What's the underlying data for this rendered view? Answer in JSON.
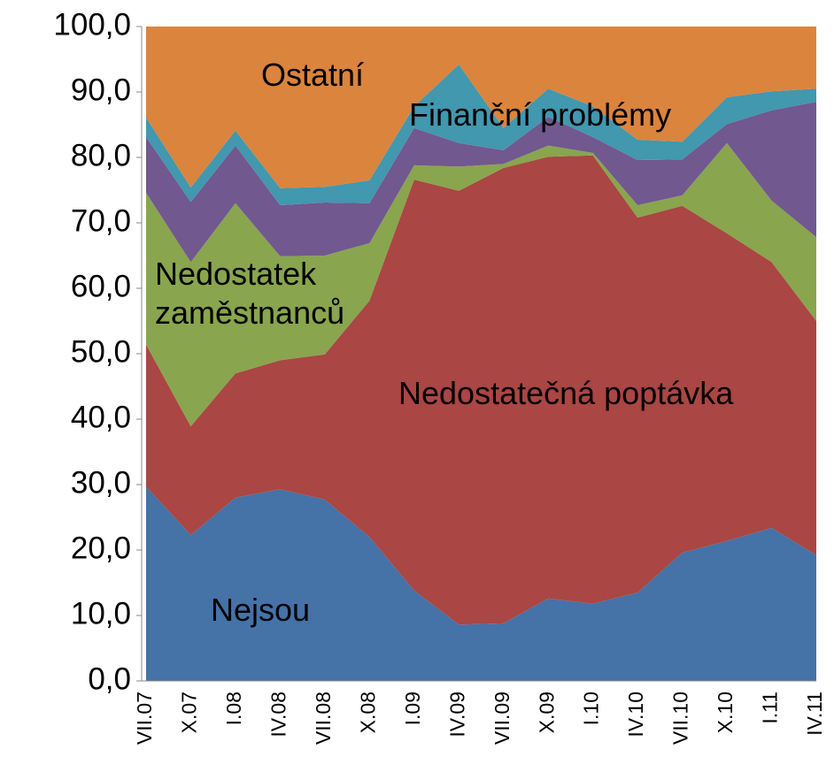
{
  "chart_data": {
    "type": "stacked_area",
    "categories": [
      "VII.07",
      "X.07",
      "I.08",
      "IV.08",
      "VII.08",
      "X.08",
      "I.09",
      "IV.09",
      "VII.09",
      "X.09",
      "I.10",
      "IV.10",
      "VII.10",
      "X.10",
      "I.11",
      "IV.11"
    ],
    "series": [
      {
        "name": "Nejsou",
        "color": "#4572a7",
        "values": [
          29.7,
          22.3,
          28,
          29.3,
          27.7,
          22,
          13.8,
          8.6,
          8.8,
          12.6,
          11.8,
          13.5,
          19.6,
          21.4,
          23.4,
          19.2
        ]
      },
      {
        "name": "Nedostatečná poptávka",
        "color": "#aa4643",
        "values": [
          21.7,
          16.6,
          19,
          19.7,
          22.2,
          36.1,
          62.8,
          66.3,
          69.6,
          67.5,
          68.5,
          57.3,
          53,
          47,
          40.6,
          35.8
        ]
      },
      {
        "name": "Nedostatek zaměstnanců",
        "color": "#89a54e",
        "values": [
          23.2,
          25.1,
          26,
          15.9,
          15.1,
          8.8,
          2.2,
          3.7,
          0.6,
          1.7,
          0.4,
          1.9,
          1.6,
          13.8,
          9.4,
          12.8
        ]
      },
      {
        "name": "Finanční problémy",
        "color": "#71588f",
        "values": [
          8.5,
          9.2,
          8.8,
          7.8,
          8.1,
          6.1,
          5.7,
          3.6,
          2.1,
          4.4,
          2.4,
          6.9,
          5.5,
          2.9,
          13.8,
          20.7
        ]
      },
      {
        "color": "#4198af",
        "values": [
          3,
          2.2,
          2.3,
          2.6,
          2.4,
          3.5,
          3.3,
          12,
          3.4,
          4.3,
          4.7,
          3.1,
          2.7,
          4.1,
          2.9,
          2
        ]
      },
      {
        "name": "Ostatní",
        "color": "#db843d",
        "values": [
          13.9,
          24.6,
          15.9,
          24.7,
          24.5,
          23.5,
          12.2,
          5.8,
          15.5,
          9.5,
          12.2,
          17.3,
          17.6,
          10.8,
          9.9,
          9.5
        ]
      }
    ],
    "ylim": [
      0,
      100
    ],
    "yticks": [
      {
        "value": 0,
        "label": "0,0"
      },
      {
        "value": 10,
        "label": "10,0"
      },
      {
        "value": 20,
        "label": "20,0"
      },
      {
        "value": 30,
        "label": "30,0"
      },
      {
        "value": 40,
        "label": "40,0"
      },
      {
        "value": 50,
        "label": "50,0"
      },
      {
        "value": 60,
        "label": "60,0"
      },
      {
        "value": 70,
        "label": "70,0"
      },
      {
        "value": 80,
        "label": "80,0"
      },
      {
        "value": 90,
        "label": "90,0"
      },
      {
        "value": 100,
        "label": "100,0"
      }
    ],
    "grid": false
  }
}
